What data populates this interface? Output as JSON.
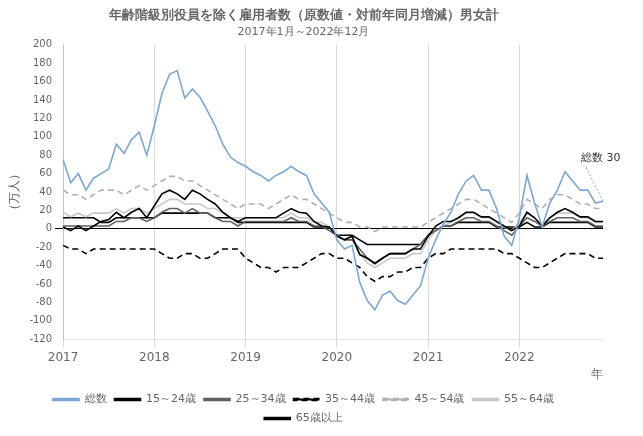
{
  "chart_data": {
    "type": "line",
    "title": "年齢階級別役員を除く雇用者数（原数値・対前年同月増減）男女計",
    "subtitle": "2017年1月～2022年12月",
    "ylabel": "（万人）",
    "xlabel": "年",
    "annotation": "総数 30",
    "ylim": [
      -120,
      200
    ],
    "yticks": [
      -120,
      -100,
      -80,
      -60,
      -40,
      -20,
      0,
      20,
      40,
      60,
      80,
      100,
      120,
      140,
      160,
      180,
      200
    ],
    "grid": "x",
    "legend": "bottom",
    "categories": [
      "2017",
      null,
      null,
      null,
      null,
      null,
      null,
      null,
      null,
      null,
      null,
      null,
      "2018",
      null,
      null,
      null,
      null,
      null,
      null,
      null,
      null,
      null,
      null,
      null,
      "2019",
      null,
      null,
      null,
      null,
      null,
      null,
      null,
      null,
      null,
      null,
      null,
      "2020",
      null,
      null,
      null,
      null,
      null,
      null,
      null,
      null,
      null,
      null,
      null,
      "2021",
      null,
      null,
      null,
      null,
      null,
      null,
      null,
      null,
      null,
      null,
      null,
      "2022",
      null,
      null,
      null,
      null,
      null,
      null,
      null,
      null,
      null,
      null,
      null
    ],
    "series": [
      {
        "name": "総数",
        "color": "#7BA7D4",
        "line_style": "solid",
        "values": [
          75,
          50,
          60,
          42,
          55,
          60,
          65,
          92,
          82,
          97,
          105,
          80,
          112,
          147,
          168,
          172,
          142,
          152,
          143,
          128,
          112,
          92,
          78,
          72,
          68,
          62,
          58,
          52,
          58,
          62,
          68,
          62,
          58,
          38,
          28,
          18,
          -12,
          -22,
          -18,
          -58,
          -78,
          -88,
          -72,
          -68,
          -78,
          -82,
          -72,
          -62,
          -32,
          -12,
          5,
          18,
          38,
          52,
          58,
          42,
          42,
          22,
          -8,
          -18,
          12,
          58,
          28,
          2,
          28,
          42,
          62,
          52,
          42,
          42,
          28,
          30
        ]
      },
      {
        "name": "15～24歳",
        "color": "#000000",
        "line_style": "solid",
        "values": [
          2,
          -2,
          3,
          -2,
          3,
          8,
          10,
          18,
          12,
          18,
          22,
          12,
          25,
          38,
          42,
          38,
          32,
          42,
          38,
          32,
          27,
          18,
          12,
          8,
          12,
          12,
          12,
          12,
          12,
          17,
          22,
          18,
          17,
          8,
          3,
          2,
          -8,
          -12,
          -8,
          -28,
          -32,
          -38,
          -32,
          -27,
          -27,
          -27,
          -22,
          -22,
          -8,
          3,
          8,
          8,
          12,
          18,
          18,
          13,
          13,
          8,
          3,
          -2,
          3,
          18,
          12,
          3,
          12,
          18,
          22,
          18,
          13,
          13,
          8,
          8
        ]
      },
      {
        "name": "25～34歳",
        "color": "#606060",
        "line_style": "solid",
        "values": [
          3,
          3,
          3,
          3,
          3,
          3,
          3,
          8,
          8,
          12,
          12,
          8,
          12,
          18,
          22,
          22,
          17,
          22,
          17,
          17,
          12,
          8,
          8,
          3,
          8,
          8,
          8,
          8,
          8,
          8,
          12,
          8,
          8,
          3,
          3,
          -2,
          -7,
          -12,
          -12,
          -22,
          -32,
          -37,
          -32,
          -27,
          -27,
          -27,
          -22,
          -17,
          -7,
          -2,
          3,
          3,
          8,
          12,
          12,
          8,
          8,
          3,
          -2,
          -7,
          3,
          12,
          8,
          3,
          8,
          12,
          12,
          12,
          8,
          8,
          3,
          3
        ]
      },
      {
        "name": "35～44歳",
        "color": "#000000",
        "line_style": "dashed",
        "values": [
          -18,
          -22,
          -22,
          -27,
          -22,
          -22,
          -22,
          -22,
          -22,
          -22,
          -22,
          -22,
          -22,
          -27,
          -32,
          -32,
          -27,
          -27,
          -32,
          -32,
          -27,
          -22,
          -22,
          -22,
          -32,
          -37,
          -42,
          -42,
          -47,
          -42,
          -42,
          -42,
          -37,
          -32,
          -27,
          -27,
          -32,
          -32,
          -37,
          -42,
          -52,
          -57,
          -52,
          -52,
          -47,
          -47,
          -42,
          -42,
          -32,
          -27,
          -27,
          -22,
          -22,
          -22,
          -22,
          -22,
          -22,
          -22,
          -27,
          -27,
          -32,
          -37,
          -42,
          -42,
          -37,
          -32,
          -27,
          -27,
          -27,
          -27,
          -32,
          -32
        ]
      },
      {
        "name": "45～54歳",
        "color": "#B0B0B0",
        "line_style": "dashed",
        "values": [
          42,
          37,
          37,
          32,
          37,
          42,
          42,
          42,
          37,
          42,
          47,
          42,
          47,
          52,
          57,
          57,
          52,
          52,
          47,
          42,
          37,
          32,
          27,
          22,
          27,
          27,
          27,
          22,
          27,
          32,
          37,
          32,
          32,
          27,
          22,
          17,
          12,
          7,
          7,
          2,
          2,
          -3,
          2,
          2,
          2,
          2,
          2,
          2,
          7,
          12,
          17,
          22,
          27,
          32,
          32,
          27,
          22,
          17,
          12,
          7,
          17,
          32,
          27,
          22,
          32,
          37,
          37,
          32,
          27,
          27,
          22,
          22
        ]
      },
      {
        "name": "55～64歳",
        "color": "#C8C8C8",
        "line_style": "solid",
        "values": [
          18,
          13,
          17,
          13,
          17,
          17,
          17,
          22,
          17,
          22,
          22,
          17,
          22,
          27,
          32,
          32,
          27,
          27,
          27,
          22,
          22,
          17,
          12,
          12,
          12,
          12,
          12,
          12,
          12,
          12,
          17,
          12,
          12,
          7,
          7,
          2,
          -7,
          -12,
          -12,
          -27,
          -37,
          -42,
          -37,
          -32,
          -32,
          -32,
          -27,
          -27,
          -12,
          -2,
          3,
          7,
          12,
          17,
          17,
          12,
          12,
          7,
          2,
          -2,
          7,
          17,
          12,
          2,
          12,
          17,
          17,
          17,
          12,
          12,
          7,
          7
        ]
      },
      {
        "name": "65歳以上",
        "color": "#000000",
        "line_style": "solid",
        "values": [
          12,
          12,
          12,
          12,
          12,
          7,
          7,
          12,
          12,
          12,
          12,
          12,
          12,
          17,
          17,
          17,
          17,
          17,
          17,
          17,
          12,
          12,
          12,
          7,
          7,
          7,
          7,
          7,
          7,
          7,
          7,
          7,
          7,
          2,
          2,
          2,
          -7,
          -7,
          -7,
          -12,
          -17,
          -17,
          -17,
          -17,
          -17,
          -17,
          -17,
          -17,
          -7,
          -2,
          3,
          3,
          7,
          7,
          7,
          7,
          7,
          2,
          2,
          2,
          2,
          7,
          2,
          2,
          7,
          7,
          7,
          7,
          7,
          7,
          2,
          2
        ]
      }
    ]
  }
}
